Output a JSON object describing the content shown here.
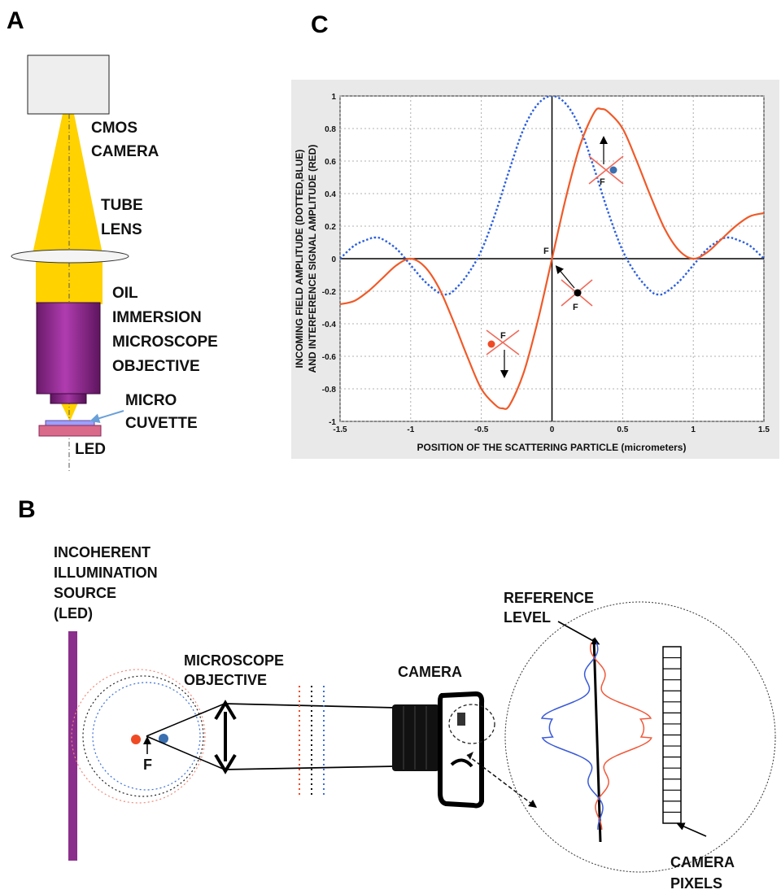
{
  "panels": {
    "a": "A",
    "b": "B",
    "c": "C"
  },
  "panel_a": {
    "camera": [
      "CMOS",
      "CAMERA"
    ],
    "tube_lens": [
      "TUBE",
      "LENS"
    ],
    "objective": [
      "OIL",
      "IMMERSION",
      "MICROSCOPE",
      "OBJECTIVE"
    ],
    "cuvette": [
      "MICRO",
      "CUVETTE"
    ],
    "led": "LED"
  },
  "panel_b": {
    "source": [
      "INCOHERENT",
      "ILLUMINATION",
      "SOURCE",
      "(LED)"
    ],
    "objective": [
      "MICROSCOPE",
      "OBJECTIVE"
    ],
    "camera": "CAMERA",
    "reference": [
      "REFERENCE",
      "LEVEL"
    ],
    "pixels": [
      "CAMERA",
      "PIXELS"
    ],
    "focus": "F"
  },
  "colors": {
    "red": "#f04a24",
    "blue": "#3a6fd8",
    "purple": "#8b2f8c",
    "yellow": "#ffd200",
    "objective": "#9a2a9a"
  },
  "chart_data": {
    "type": "line",
    "xlabel": "POSITION OF THE SCATTERING PARTICLE (micrometers)",
    "ylabel": [
      "INCOMING FIELD AMPLITUDE (DOTTED,BLUE)",
      "AND INTERFERENCE SIGNAL AMPLITUDE (RED)"
    ],
    "xlim": [
      -1.5,
      1.5
    ],
    "ylim": [
      -1,
      1
    ],
    "xticks": [
      "-1.5",
      "-1",
      "-0.5",
      "0",
      "0.5",
      "1",
      "1.5"
    ],
    "yticks": [
      "-1",
      "-0.8",
      "-0.6",
      "-0.4",
      "-0.2",
      "0",
      "0.2",
      "0.4",
      "0.6",
      "0.8",
      "1"
    ],
    "grid": true,
    "series": [
      {
        "style": "dotted",
        "color": "#2b5fe0",
        "x": [
          -1.5,
          -1.4,
          -1.3,
          -1.25,
          -1.2,
          -1.1,
          -1.0,
          -0.9,
          -0.8,
          -0.75,
          -0.7,
          -0.6,
          -0.5,
          -0.4,
          -0.3,
          -0.2,
          -0.1,
          0,
          0.1,
          0.2,
          0.3,
          0.4,
          0.5,
          0.6,
          0.7,
          0.75,
          0.8,
          0.9,
          1.0,
          1.1,
          1.2,
          1.25,
          1.3,
          1.4,
          1.5
        ],
        "y": [
          0,
          0.08,
          0.12,
          0.13,
          0.12,
          0.06,
          -0.04,
          -0.14,
          -0.21,
          -0.22,
          -0.2,
          -0.1,
          0.05,
          0.28,
          0.55,
          0.8,
          0.95,
          1,
          0.95,
          0.8,
          0.55,
          0.28,
          0.05,
          -0.1,
          -0.2,
          -0.22,
          -0.21,
          -0.14,
          -0.04,
          0.06,
          0.12,
          0.13,
          0.12,
          0.08,
          0
        ]
      },
      {
        "style": "solid",
        "color": "#f05a28",
        "x": [
          -1.5,
          -1.4,
          -1.3,
          -1.2,
          -1.1,
          -1.0,
          -0.9,
          -0.8,
          -0.7,
          -0.6,
          -0.5,
          -0.4,
          -0.35,
          -0.3,
          -0.2,
          -0.1,
          0,
          0.1,
          0.2,
          0.3,
          0.35,
          0.4,
          0.5,
          0.6,
          0.7,
          0.8,
          0.9,
          1.0,
          1.1,
          1.2,
          1.3,
          1.4,
          1.5
        ],
        "y": [
          -0.28,
          -0.26,
          -0.2,
          -0.12,
          -0.04,
          0,
          -0.05,
          -0.18,
          -0.38,
          -0.6,
          -0.8,
          -0.9,
          -0.92,
          -0.9,
          -0.7,
          -0.38,
          0,
          0.38,
          0.7,
          0.9,
          0.92,
          0.9,
          0.8,
          0.6,
          0.38,
          0.18,
          0.05,
          0,
          0.04,
          0.12,
          0.2,
          0.26,
          0.28
        ]
      }
    ],
    "annotations": {
      "focus": "F"
    }
  }
}
